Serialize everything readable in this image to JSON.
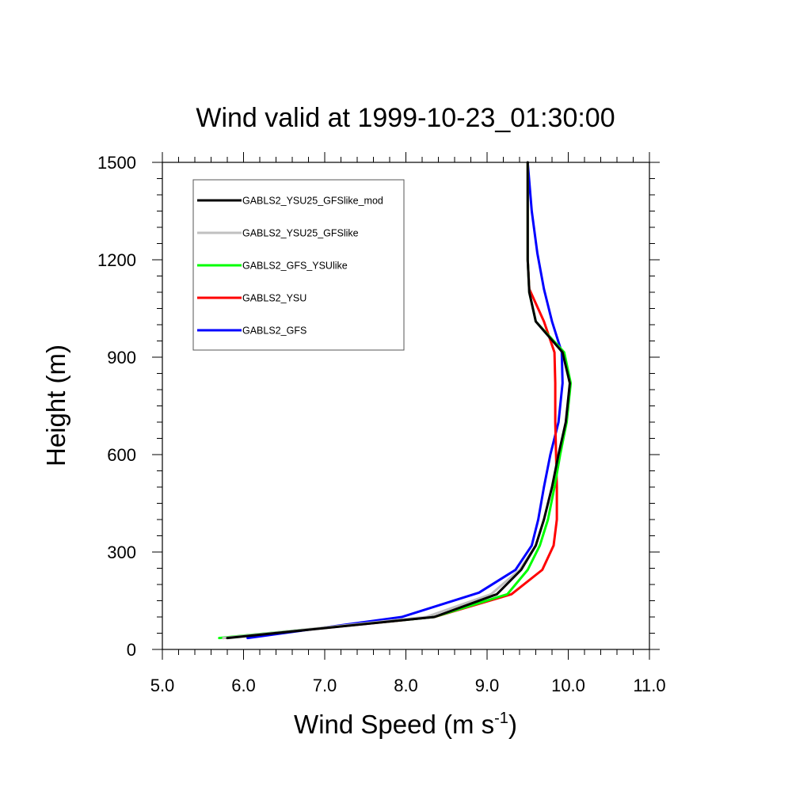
{
  "chart_data": {
    "type": "line",
    "title": "Wind valid at 1999-10-23_01:30:00",
    "xlabel": "Wind Speed (m s",
    "xlabel_sup": "-1",
    "xlabel_suffix": ")",
    "ylabel": "Height (m)",
    "xlim": [
      5.0,
      11.0
    ],
    "ylim": [
      0,
      1500
    ],
    "x_ticks": [
      5.0,
      6.0,
      7.0,
      8.0,
      9.0,
      10.0,
      11.0
    ],
    "x_tick_labels": [
      "5.0",
      "6.0",
      "7.0",
      "8.0",
      "9.0",
      "10.0",
      "11.0"
    ],
    "y_ticks": [
      0,
      300,
      600,
      900,
      1200,
      1500
    ],
    "y_tick_labels": [
      "0",
      "300",
      "600",
      "900",
      "1200",
      "1500"
    ],
    "grid": false,
    "legend_position": "top-left",
    "series": [
      {
        "name": "GABLS2_YSU25_GFSlike_mod",
        "color": "#000000",
        "points": [
          [
            5.8,
            35
          ],
          [
            8.35,
            100
          ],
          [
            9.12,
            170
          ],
          [
            9.42,
            245
          ],
          [
            9.6,
            320
          ],
          [
            9.7,
            400
          ],
          [
            9.8,
            500
          ],
          [
            9.88,
            600
          ],
          [
            9.97,
            700
          ],
          [
            10.02,
            820
          ],
          [
            9.93,
            915
          ],
          [
            9.6,
            1010
          ],
          [
            9.52,
            1100
          ],
          [
            9.5,
            1200
          ],
          [
            9.5,
            1300
          ],
          [
            9.5,
            1400
          ],
          [
            9.5,
            1500
          ]
        ]
      },
      {
        "name": "GABLS2_YSU25_GFSlike",
        "color": "#c0c0c0",
        "points": [
          [
            5.75,
            35
          ],
          [
            8.25,
            100
          ],
          [
            9.05,
            170
          ],
          [
            9.4,
            245
          ],
          [
            9.6,
            320
          ],
          [
            9.7,
            400
          ],
          [
            9.8,
            500
          ],
          [
            9.88,
            600
          ],
          [
            9.97,
            700
          ],
          [
            10.02,
            820
          ],
          [
            9.93,
            915
          ],
          [
            9.6,
            1010
          ],
          [
            9.52,
            1100
          ],
          [
            9.5,
            1200
          ],
          [
            9.5,
            1300
          ],
          [
            9.5,
            1400
          ],
          [
            9.5,
            1500
          ]
        ]
      },
      {
        "name": "GABLS2_GFS_YSUlike",
        "color": "#00ff00",
        "points": [
          [
            5.7,
            35
          ],
          [
            8.35,
            100
          ],
          [
            9.25,
            170
          ],
          [
            9.5,
            245
          ],
          [
            9.65,
            320
          ],
          [
            9.75,
            400
          ],
          [
            9.83,
            500
          ],
          [
            9.9,
            600
          ],
          [
            9.98,
            700
          ],
          [
            10.03,
            820
          ],
          [
            9.95,
            915
          ],
          [
            9.6,
            1010
          ],
          [
            9.52,
            1100
          ],
          [
            9.5,
            1200
          ],
          [
            9.5,
            1300
          ],
          [
            9.5,
            1400
          ],
          [
            9.5,
            1500
          ]
        ]
      },
      {
        "name": "GABLS2_YSU",
        "color": "#ff0000",
        "points": [
          [
            5.75,
            35
          ],
          [
            8.35,
            100
          ],
          [
            9.3,
            170
          ],
          [
            9.68,
            245
          ],
          [
            9.82,
            320
          ],
          [
            9.86,
            400
          ],
          [
            9.86,
            500
          ],
          [
            9.85,
            600
          ],
          [
            9.84,
            700
          ],
          [
            9.84,
            820
          ],
          [
            9.83,
            915
          ],
          [
            9.7,
            1010
          ],
          [
            9.52,
            1110
          ],
          [
            9.5,
            1200
          ],
          [
            9.5,
            1300
          ],
          [
            9.5,
            1400
          ],
          [
            9.5,
            1500
          ]
        ]
      },
      {
        "name": "GABLS2_GFS",
        "color": "#0000ff",
        "points": [
          [
            6.05,
            35
          ],
          [
            7.95,
            100
          ],
          [
            8.9,
            175
          ],
          [
            9.35,
            245
          ],
          [
            9.55,
            320
          ],
          [
            9.63,
            400
          ],
          [
            9.7,
            500
          ],
          [
            9.78,
            600
          ],
          [
            9.88,
            700
          ],
          [
            9.93,
            820
          ],
          [
            9.92,
            915
          ],
          [
            9.8,
            1010
          ],
          [
            9.7,
            1110
          ],
          [
            9.62,
            1220
          ],
          [
            9.55,
            1350
          ],
          [
            9.5,
            1500
          ]
        ]
      }
    ]
  }
}
